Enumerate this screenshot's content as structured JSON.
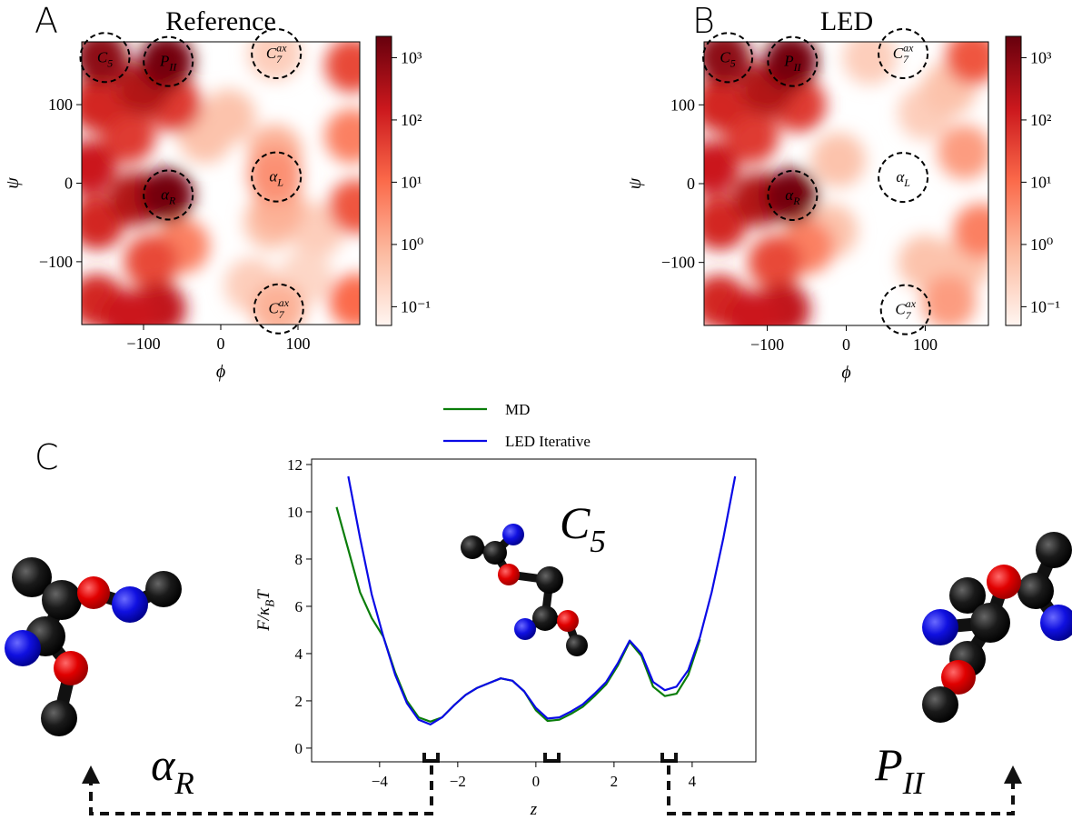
{
  "panel_letters": [
    "A",
    "B",
    "C"
  ],
  "state_labels": [
    [
      {
        "text": "α"
      },
      {
        "text": "R",
        "sub": true
      }
    ],
    [
      {
        "text": "P"
      },
      {
        "text": "II",
        "sub": true
      }
    ]
  ],
  "chart_data": [
    {
      "type": "density",
      "title": "Reference",
      "xlabel": "ϕ",
      "ylabel": "ψ",
      "xlim": [
        -180,
        180
      ],
      "ylim": [
        -180,
        180
      ],
      "xticks": [
        {
          "value": -100,
          "label": "−100"
        },
        0,
        100
      ],
      "yticks": [
        {
          "value": -100,
          "label": "−100"
        },
        0,
        100
      ],
      "colorbar": {
        "scale": "log",
        "clim": [
          0.05,
          2200
        ],
        "colormap": [
          "#fff5f0",
          "#fcbba1",
          "#fb6a4a",
          "#cb181d",
          "#67000d"
        ],
        "ticks": [
          {
            "value": 1000,
            "label": "10³"
          },
          {
            "value": 100,
            "label": "10²"
          },
          {
            "value": 10,
            "label": "10¹"
          },
          {
            "value": 1,
            "label": "10⁰"
          },
          {
            "value": 0.1,
            "label": "10⁻¹"
          }
        ]
      },
      "x": [
        10,
        -20,
        40,
        125,
        110,
        70,
        65,
        75,
        70,
        75,
        70,
        175,
        170,
        175,
        170,
        -50,
        -60,
        -90,
        -120,
        -160,
        -160,
        -170,
        -160,
        -110,
        -100,
        -80,
        -120,
        -155,
        -70,
        -70
      ],
      "y": [
        85,
        60,
        -130,
        -60,
        -120,
        165,
        -50,
        -30,
        40,
        -160,
        10,
        -30,
        60,
        -150,
        150,
        -80,
        100,
        -100,
        60,
        100,
        -50,
        20,
        -150,
        -20,
        120,
        -160,
        -170,
        160,
        155,
        -15
      ],
      "values": [
        0.5,
        0.5,
        0.3,
        0.3,
        0.2,
        0.3,
        0.5,
        1,
        1,
        1,
        3,
        20,
        5,
        10,
        30,
        5,
        50,
        30,
        50,
        100,
        100,
        150,
        100,
        300,
        300,
        200,
        150,
        800,
        1500,
        1500
      ],
      "annotations": [
        {
          "label": [
            {
              "text": "C"
            },
            {
              "text": "5",
              "sub": true
            }
          ],
          "x": -150,
          "y": 160
        },
        {
          "label": [
            {
              "text": "P"
            },
            {
              "text": "II",
              "sub": true
            }
          ],
          "x": -68,
          "y": 155
        },
        {
          "label": [
            {
              "text": "C"
            },
            {
              "text": "7",
              "sub": true
            },
            {
              "text": "ax",
              "sup": true
            }
          ],
          "x": 72,
          "y": 165
        },
        {
          "label": [
            {
              "text": "α"
            },
            {
              "text": "L",
              "sub": true
            }
          ],
          "x": 72,
          "y": 8
        },
        {
          "label": [
            {
              "text": "α"
            },
            {
              "text": "R",
              "sub": true
            }
          ],
          "x": -68,
          "y": -15
        },
        {
          "label": [
            {
              "text": "C"
            },
            {
              "text": "7",
              "sub": true
            },
            {
              "text": "ax",
              "sup": true
            }
          ],
          "x": 75,
          "y": -160
        }
      ]
    },
    {
      "type": "density",
      "title": "LED",
      "xlabel": "ϕ",
      "ylabel": "ψ",
      "xlim": [
        -180,
        180
      ],
      "ylim": [
        -180,
        180
      ],
      "xticks": [
        {
          "value": -100,
          "label": "−100"
        },
        0,
        100
      ],
      "yticks": [
        {
          "value": -100,
          "label": "−100"
        },
        0,
        100
      ],
      "colorbar": {
        "scale": "log",
        "clim": [
          0.05,
          2200
        ],
        "colormap": [
          "#fff5f0",
          "#fcbba1",
          "#fb6a4a",
          "#cb181d",
          "#67000d"
        ],
        "ticks": [
          {
            "value": 1000,
            "label": "10³"
          },
          {
            "value": 100,
            "label": "10²"
          },
          {
            "value": 10,
            "label": "10¹"
          },
          {
            "value": 1,
            "label": "10⁰"
          },
          {
            "value": 0.1,
            "label": "10⁻¹"
          }
        ]
      },
      "x": [
        30,
        100,
        -20,
        -10,
        100,
        130,
        150,
        150,
        130,
        170,
        160,
        -50,
        -60,
        -90,
        -120,
        -160,
        -160,
        -170,
        -160,
        -110,
        -100,
        -80,
        -120,
        -155,
        -70,
        -70
      ],
      "y": [
        160,
        90,
        -60,
        30,
        -100,
        120,
        -100,
        40,
        -150,
        -60,
        160,
        -80,
        100,
        -100,
        60,
        100,
        -50,
        20,
        -150,
        -20,
        120,
        -160,
        -170,
        160,
        155,
        -15
      ],
      "values": [
        0.3,
        0.3,
        0.5,
        0.5,
        0.5,
        0.5,
        0.5,
        2,
        2,
        5,
        20,
        5,
        50,
        30,
        50,
        100,
        100,
        150,
        100,
        300,
        300,
        200,
        150,
        800,
        1500,
        1500
      ],
      "annotations": [
        {
          "label": [
            {
              "text": "C"
            },
            {
              "text": "5",
              "sub": true
            }
          ],
          "x": -150,
          "y": 160
        },
        {
          "label": [
            {
              "text": "P"
            },
            {
              "text": "II",
              "sub": true
            }
          ],
          "x": -68,
          "y": 155
        },
        {
          "label": [
            {
              "text": "C"
            },
            {
              "text": "7",
              "sub": true
            },
            {
              "text": "ax",
              "sup": true
            }
          ],
          "x": 72,
          "y": 165
        },
        {
          "label": [
            {
              "text": "α"
            },
            {
              "text": "L",
              "sub": true
            }
          ],
          "x": 72,
          "y": 8
        },
        {
          "label": [
            {
              "text": "α"
            },
            {
              "text": "R",
              "sub": true
            }
          ],
          "x": -68,
          "y": -15
        },
        {
          "label": [
            {
              "text": "C"
            },
            {
              "text": "7",
              "sub": true
            },
            {
              "text": "ax",
              "sup": true
            }
          ],
          "x": 75,
          "y": -160
        }
      ]
    },
    {
      "type": "line",
      "xlabel": "z",
      "ylabel": [
        {
          "text": "F/κ"
        },
        {
          "text": "B",
          "sub": true
        },
        {
          "text": "T"
        }
      ],
      "xlim": [
        -5.74,
        5.63
      ],
      "ylim": [
        -0.58,
        12.23
      ],
      "xticks": [
        {
          "value": -4,
          "label": "−4"
        },
        {
          "value": -2,
          "label": "−2"
        },
        0,
        2,
        4
      ],
      "yticks": [
        0,
        2,
        4,
        6,
        8,
        10,
        12
      ],
      "legend": "top",
      "x": [
        -5.1,
        -4.8,
        -4.5,
        -4.2,
        -3.9,
        -3.6,
        -3.3,
        -3.0,
        -2.7,
        -2.4,
        -2.1,
        -1.8,
        -1.5,
        -1.2,
        -0.9,
        -0.6,
        -0.3,
        0,
        0.3,
        0.6,
        0.9,
        1.2,
        1.5,
        1.8,
        2.1,
        2.4,
        2.7,
        3.0,
        3.3,
        3.6,
        3.9,
        4.2,
        4.5,
        4.8,
        5.1
      ],
      "series": [
        {
          "name": "MD",
          "color": "#0a7d0a",
          "values": [
            10.2,
            8.4,
            6.6,
            5.5,
            4.7,
            3.2,
            2.0,
            1.3,
            1.12,
            1.3,
            1.8,
            2.25,
            2.55,
            2.75,
            2.95,
            2.85,
            2.4,
            1.6,
            1.15,
            1.2,
            1.45,
            1.75,
            2.2,
            2.7,
            3.5,
            4.5,
            3.9,
            2.6,
            2.2,
            2.3,
            3.1,
            4.6,
            null,
            null,
            null
          ]
        },
        {
          "name": "LED Iterative",
          "color": "#0a0ae6",
          "values": [
            null,
            11.5,
            8.9,
            6.5,
            4.7,
            3.1,
            1.9,
            1.2,
            1.0,
            1.3,
            1.8,
            2.25,
            2.55,
            2.75,
            2.95,
            2.85,
            2.4,
            1.7,
            1.25,
            1.3,
            1.55,
            1.85,
            2.3,
            2.8,
            3.6,
            4.55,
            4.0,
            2.8,
            2.45,
            2.6,
            3.3,
            4.7,
            6.6,
            8.9,
            11.5
          ]
        }
      ],
      "annotations": [
        {
          "label": [
            {
              "text": "C"
            },
            {
              "text": "5",
              "sub": true
            }
          ],
          "x": 1.2,
          "y": 9.5
        }
      ]
    }
  ]
}
